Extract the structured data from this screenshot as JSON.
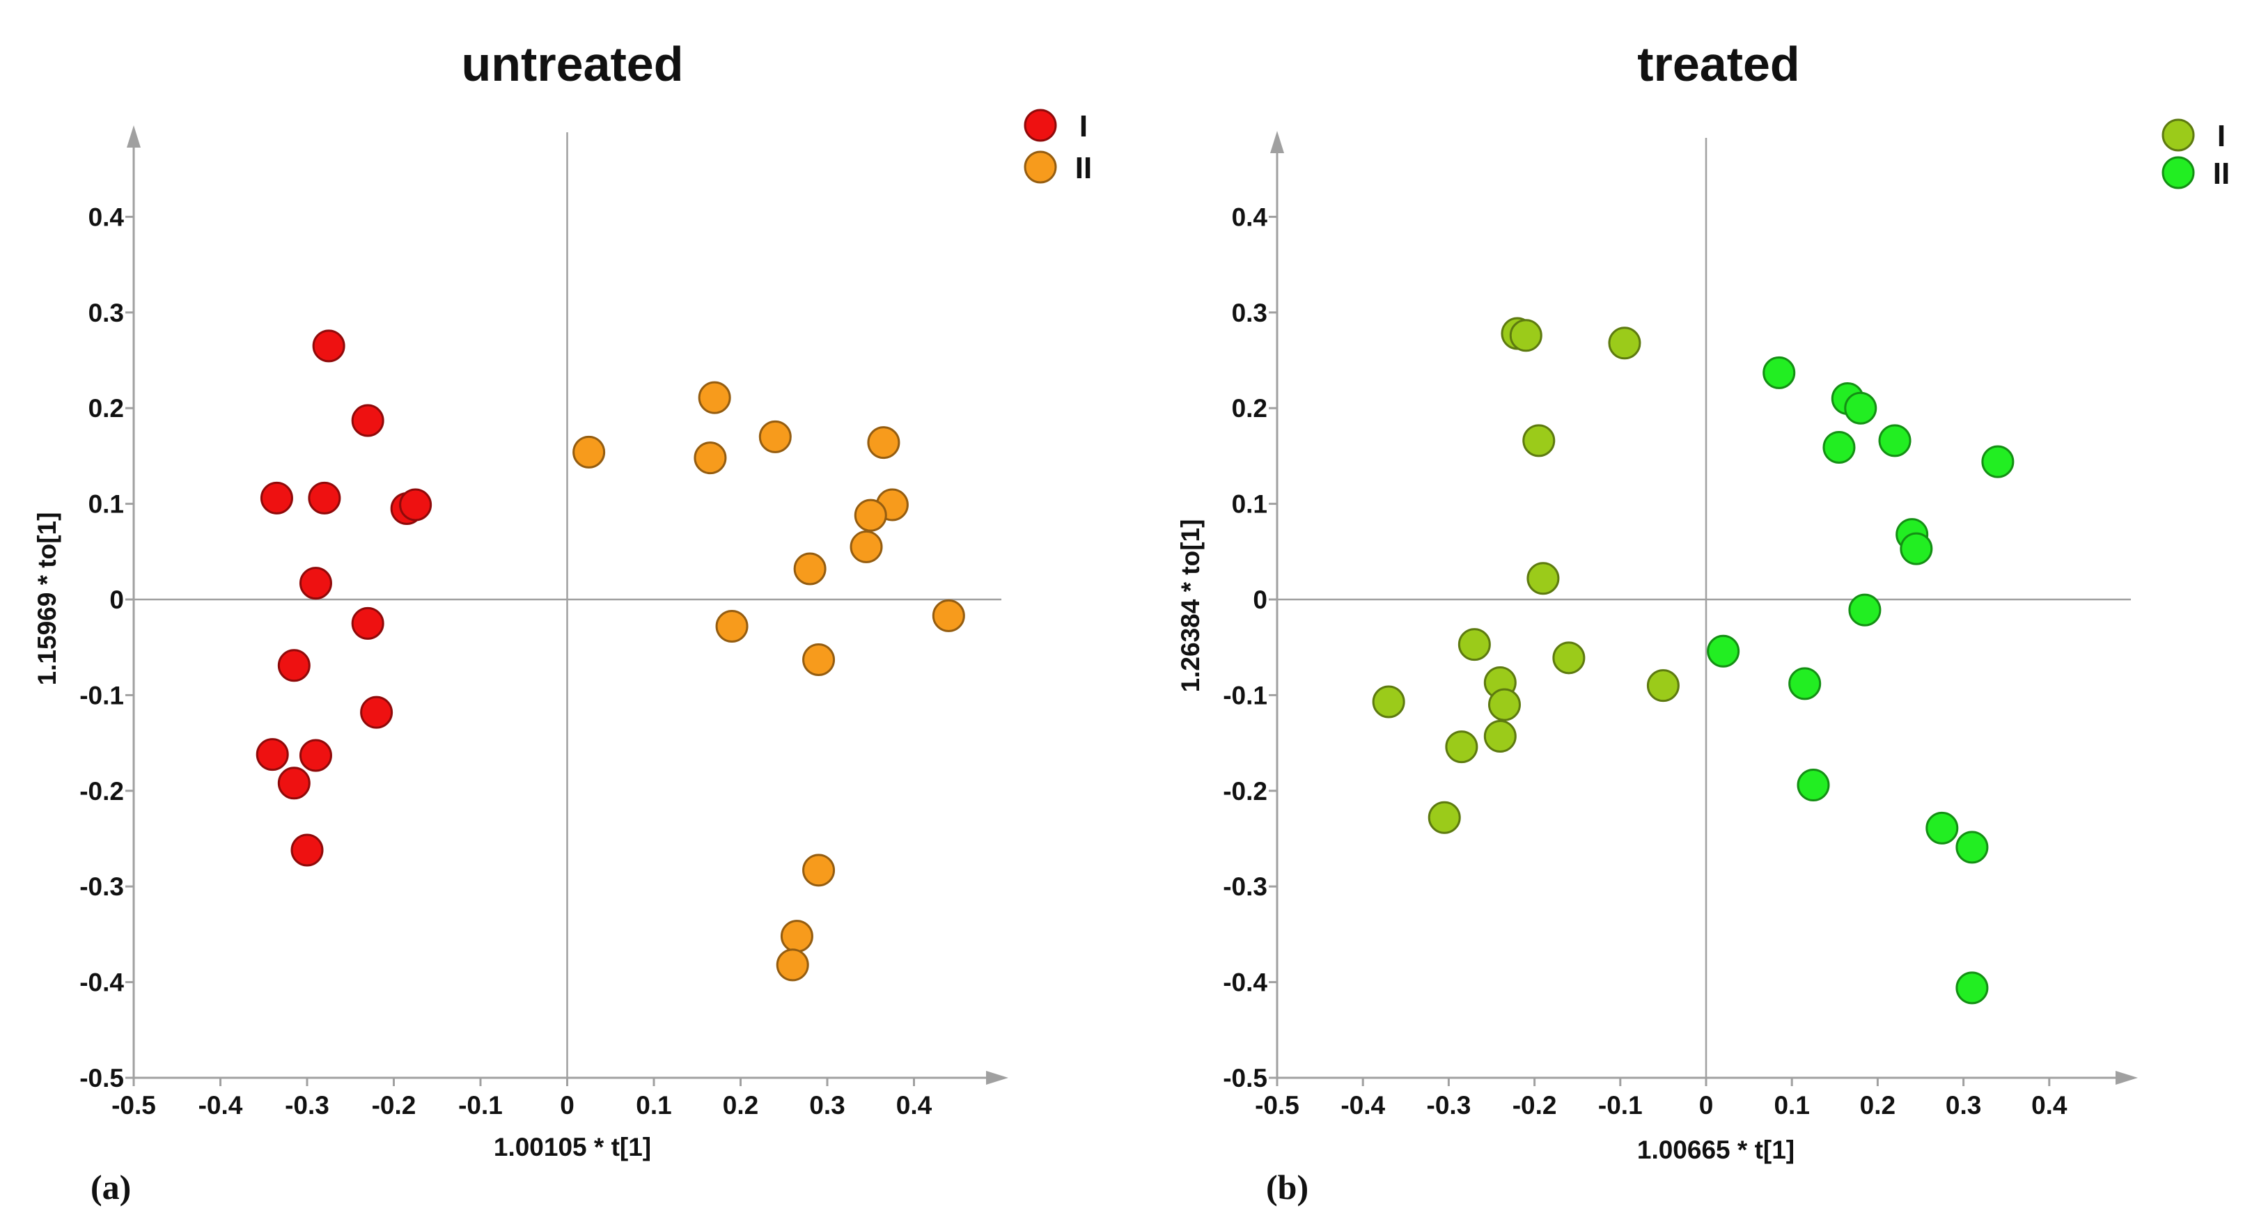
{
  "chart_data": [
    {
      "type": "scatter",
      "title": "untreated",
      "panel_label": "(a)",
      "xlabel": "1.00105 * t[1]",
      "ylabel": "1.15969 * to[1]",
      "xlim": [
        -0.5,
        0.5
      ],
      "ylim": [
        -0.5,
        0.5
      ],
      "xticks": [
        "-0.5",
        "-0.4",
        "-0.3",
        "-0.2",
        "-0.1",
        "0",
        "0.1",
        "0.2",
        "0.3",
        "0.4"
      ],
      "yticks": [
        "-0.5",
        "-0.4",
        "-0.3",
        "-0.2",
        "-0.1",
        "0",
        "0.1",
        "0.2",
        "0.3",
        "0.4"
      ],
      "legend_position": "top-right",
      "series": [
        {
          "name": "I",
          "color": "#ee1111",
          "points": [
            [
              -0.275,
              0.265
            ],
            [
              -0.23,
              0.187
            ],
            [
              -0.335,
              0.106
            ],
            [
              -0.28,
              0.106
            ],
            [
              -0.185,
              0.095
            ],
            [
              -0.175,
              0.099
            ],
            [
              -0.29,
              0.017
            ],
            [
              -0.23,
              -0.025
            ],
            [
              -0.315,
              -0.069
            ],
            [
              -0.22,
              -0.118
            ],
            [
              -0.34,
              -0.162
            ],
            [
              -0.29,
              -0.163
            ],
            [
              -0.315,
              -0.192
            ],
            [
              -0.3,
              -0.262
            ]
          ]
        },
        {
          "name": "II",
          "color": "#f79b1c",
          "points": [
            [
              0.025,
              0.154
            ],
            [
              0.17,
              0.211
            ],
            [
              0.165,
              0.148
            ],
            [
              0.24,
              0.17
            ],
            [
              0.365,
              0.164
            ],
            [
              0.375,
              0.099
            ],
            [
              0.35,
              0.088
            ],
            [
              0.345,
              0.055
            ],
            [
              0.28,
              0.032
            ],
            [
              0.19,
              -0.028
            ],
            [
              0.44,
              -0.017
            ],
            [
              0.29,
              -0.063
            ],
            [
              0.29,
              -0.283
            ],
            [
              0.265,
              -0.352
            ],
            [
              0.26,
              -0.382
            ]
          ]
        }
      ]
    },
    {
      "type": "scatter",
      "title": "treated",
      "panel_label": "(b)",
      "xlabel": "1.00665 * t[1]",
      "ylabel": "1.26384 * to[1]",
      "xlim": [
        -0.5,
        0.5
      ],
      "ylim": [
        -0.5,
        0.5
      ],
      "xticks": [
        "-0.5",
        "-0.4",
        "-0.3",
        "-0.2",
        "-0.1",
        "0",
        "0.1",
        "0.2",
        "0.3",
        "0.4"
      ],
      "yticks": [
        "-0.5",
        "-0.4",
        "-0.3",
        "-0.2",
        "-0.1",
        "0",
        "0.1",
        "0.2",
        "0.3",
        "0.4"
      ],
      "legend_position": "top-right",
      "series": [
        {
          "name": "I",
          "color": "#9bcb1a",
          "points": [
            [
              -0.22,
              0.278
            ],
            [
              -0.21,
              0.276
            ],
            [
              -0.095,
              0.268
            ],
            [
              -0.195,
              0.166
            ],
            [
              -0.19,
              0.022
            ],
            [
              -0.27,
              -0.047
            ],
            [
              -0.16,
              -0.061
            ],
            [
              -0.05,
              -0.09
            ],
            [
              -0.24,
              -0.087
            ],
            [
              -0.235,
              -0.11
            ],
            [
              -0.37,
              -0.107
            ],
            [
              -0.24,
              -0.143
            ],
            [
              -0.285,
              -0.154
            ],
            [
              -0.305,
              -0.228
            ]
          ]
        },
        {
          "name": "II",
          "color": "#22ee22",
          "points": [
            [
              0.085,
              0.237
            ],
            [
              0.165,
              0.21
            ],
            [
              0.18,
              0.2
            ],
            [
              0.22,
              0.166
            ],
            [
              0.155,
              0.159
            ],
            [
              0.34,
              0.144
            ],
            [
              0.24,
              0.068
            ],
            [
              0.245,
              0.053
            ],
            [
              0.02,
              -0.054
            ],
            [
              0.185,
              -0.011
            ],
            [
              0.115,
              -0.088
            ],
            [
              0.125,
              -0.194
            ],
            [
              0.275,
              -0.239
            ],
            [
              0.31,
              -0.259
            ],
            [
              0.31,
              -0.406
            ]
          ]
        }
      ]
    }
  ]
}
